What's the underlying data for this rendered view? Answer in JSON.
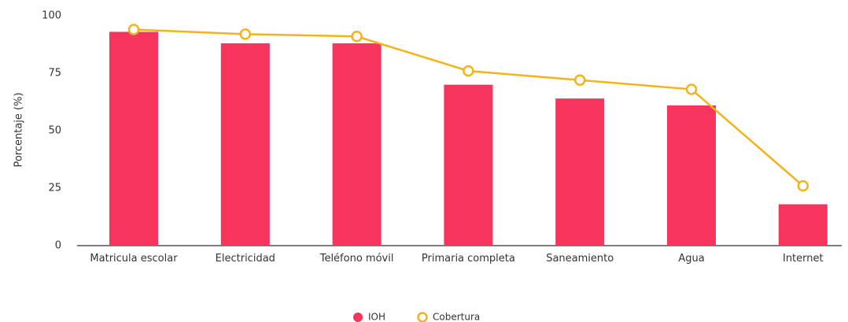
{
  "chart_data": {
    "type": "bar_line",
    "y_axis_label": "Porcentaje (%)",
    "categories": [
      "Matricula escolar",
      "Electricidad",
      "Teléfono móvil",
      "Primaria completa",
      "Saneamiento",
      "Agua",
      "Internet"
    ],
    "series": [
      {
        "name": "IOH",
        "type": "bar",
        "color": "#f7345c",
        "values": [
          93,
          88,
          88,
          70,
          64,
          61,
          18
        ]
      },
      {
        "name": "Cobertura",
        "type": "line",
        "color": "#f2b31b",
        "values": [
          94,
          92,
          91,
          76,
          72,
          68,
          26
        ]
      }
    ],
    "ylim": [
      0,
      100
    ],
    "yticks": [
      0,
      25,
      50,
      75,
      100
    ],
    "grid": false,
    "legend": "bottom"
  }
}
